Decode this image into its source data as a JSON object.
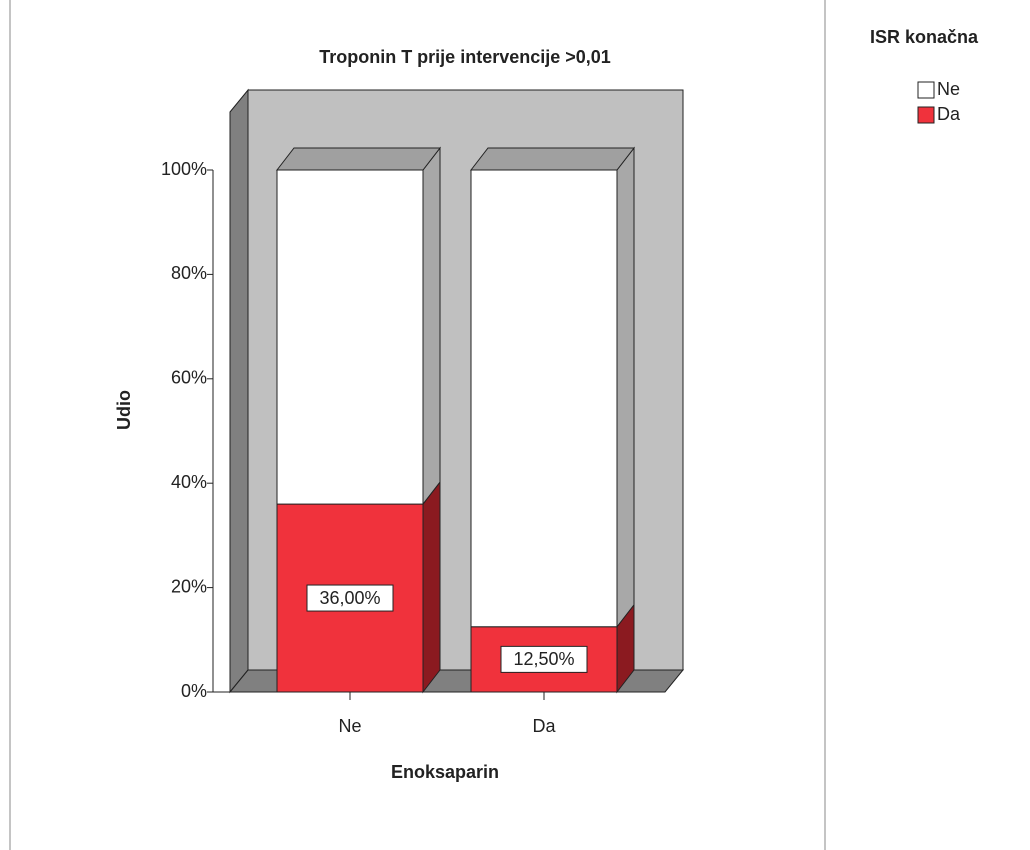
{
  "chart_data": {
    "type": "bar3d_stacked",
    "title": "Troponin T prije intervencije >0,01",
    "x_label": "Enoksaparin",
    "y_label": "Udio",
    "legend_title": "ISR konačna",
    "categories": [
      "Ne",
      "Da"
    ],
    "series": [
      {
        "name": "Da",
        "color": "#f0323c",
        "values": [
          36,
          12.5
        ],
        "value_labels": [
          "36,00%",
          "12,50%"
        ]
      },
      {
        "name": "Ne",
        "color": "#ffffff",
        "values": [
          64,
          87.5
        ]
      }
    ],
    "ylim": [
      0,
      100
    ],
    "yticks": [
      {
        "value": 0,
        "label": "0%"
      },
      {
        "value": 20,
        "label": "20%"
      },
      {
        "value": 40,
        "label": "40%"
      },
      {
        "value": 60,
        "label": "60%"
      },
      {
        "value": 80,
        "label": "80%"
      },
      {
        "value": 100,
        "label": "100%"
      }
    ],
    "legend": "right"
  }
}
